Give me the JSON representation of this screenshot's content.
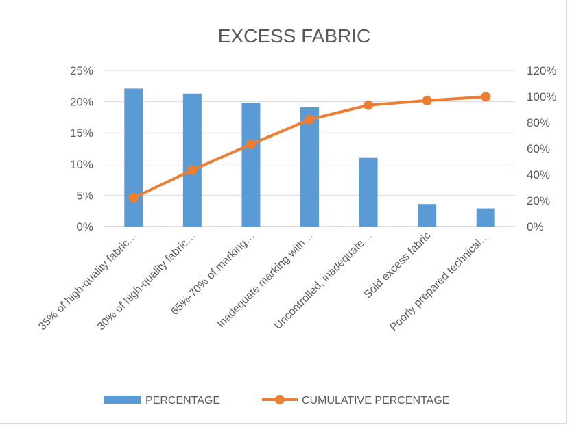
{
  "chart_data": {
    "type": "bar",
    "title": "EXCESS FABRIC",
    "categories": [
      "35% of high-quality fabric…",
      "30% of high-quality fabric…",
      "65%-70% of marking…",
      "Inadequate marking with…",
      "Uncontrolled, inadequate…",
      "Sold excess fabric",
      "Poorly prepared technical…"
    ],
    "series": [
      {
        "name": "PERCENTAGE",
        "type": "bar",
        "axis": "left",
        "color": "#5B9BD5",
        "values": [
          22.1,
          21.3,
          19.8,
          19.1,
          11.0,
          3.6,
          2.9
        ]
      },
      {
        "name": "CUMULATIVE PERCENTAGE",
        "type": "line",
        "axis": "right",
        "color": "#ED7D31",
        "values": [
          22.1,
          43.4,
          63.2,
          82.3,
          93.3,
          96.9,
          99.8
        ]
      }
    ],
    "y_left": {
      "min": 0,
      "max": 25,
      "step": 5,
      "ticks": [
        "0%",
        "5%",
        "10%",
        "15%",
        "20%",
        "25%"
      ]
    },
    "y_right": {
      "min": 0,
      "max": 120,
      "step": 20,
      "ticks": [
        "0%",
        "20%",
        "40%",
        "60%",
        "80%",
        "100%",
        "120%"
      ]
    },
    "grid": true,
    "legend": "bottom"
  }
}
